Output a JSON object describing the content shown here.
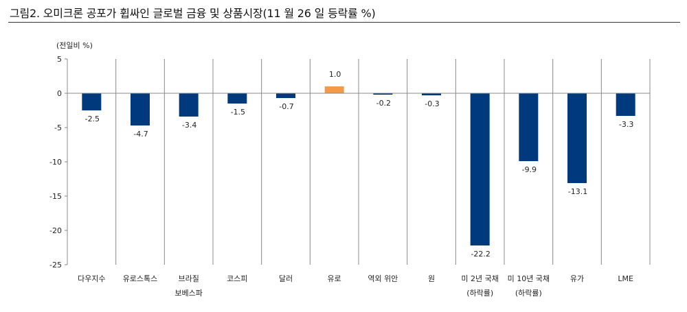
{
  "figure": {
    "title": "그림2. 오미크론 공포가 휩싸인 글로벌 금융 및 상품시장(11 월 26 일 등락률 %)"
  },
  "chart_data": {
    "type": "bar",
    "title": "오미크론 공포가 휩싸인 글로벌 금융 및 상품시장(11 월 26 일 등락률 %)",
    "unit_label": "(전일비 %)",
    "xlabel": "",
    "ylabel": "(전일비 %)",
    "ylim": [
      -25,
      5
    ],
    "yticks": [
      5,
      0,
      -5,
      -10,
      -15,
      -20,
      -25
    ],
    "grid": false,
    "categories": [
      [
        "다우지수"
      ],
      [
        "유로스톡스"
      ],
      [
        "브라질",
        "보베스파"
      ],
      [
        "코스피"
      ],
      [
        "달러"
      ],
      [
        "유로"
      ],
      [
        "역외 위안"
      ],
      [
        "원"
      ],
      [
        "미 2년 국채",
        "(하락률)"
      ],
      [
        "미 10년 국채",
        "(하락률)"
      ],
      [
        "유가"
      ],
      [
        "LME"
      ]
    ],
    "values": [
      -2.5,
      -4.7,
      -3.4,
      -1.5,
      -0.7,
      1.0,
      -0.2,
      -0.3,
      -22.2,
      -9.9,
      -13.1,
      -3.3
    ],
    "value_labels": [
      "-2.5",
      "-4.7",
      "-3.4",
      "-1.5",
      "-0.7",
      "1.0",
      "-0.2",
      "-0.3",
      "-22.2",
      "-9.9",
      "-13.1",
      "-3.3"
    ],
    "colors": {
      "negative": "#003a7d",
      "positive": "#f29a4a",
      "axis": "#888888"
    }
  }
}
